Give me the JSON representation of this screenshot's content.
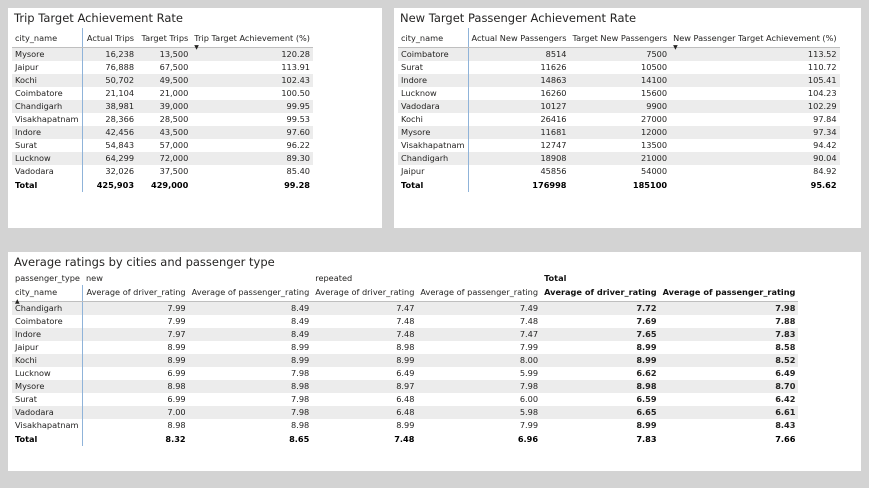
{
  "trip": {
    "title": "Trip Target Achievement Rate",
    "headers": [
      "city_name",
      "Actual Trips",
      "Target Trips",
      "Trip Target Achievement (%)"
    ],
    "rows": [
      [
        "Mysore",
        "16,238",
        "13,500",
        "120.28"
      ],
      [
        "Jaipur",
        "76,888",
        "67,500",
        "113.91"
      ],
      [
        "Kochi",
        "50,702",
        "49,500",
        "102.43"
      ],
      [
        "Coimbatore",
        "21,104",
        "21,000",
        "100.50"
      ],
      [
        "Chandigarh",
        "38,981",
        "39,000",
        "99.95"
      ],
      [
        "Visakhapatnam",
        "28,366",
        "28,500",
        "99.53"
      ],
      [
        "Indore",
        "42,456",
        "43,500",
        "97.60"
      ],
      [
        "Surat",
        "54,843",
        "57,000",
        "96.22"
      ],
      [
        "Lucknow",
        "64,299",
        "72,000",
        "89.30"
      ],
      [
        "Vadodara",
        "32,026",
        "37,500",
        "85.40"
      ]
    ],
    "total": [
      "Total",
      "425,903",
      "429,000",
      "99.28"
    ]
  },
  "passenger": {
    "title": "New Target Passenger Achievement Rate",
    "headers": [
      "city_name",
      "Actual New Passengers",
      "Target New Passengers",
      "New Passenger Target Achievement (%)"
    ],
    "rows": [
      [
        "Coimbatore",
        "8514",
        "7500",
        "113.52"
      ],
      [
        "Surat",
        "11626",
        "10500",
        "110.72"
      ],
      [
        "Indore",
        "14863",
        "14100",
        "105.41"
      ],
      [
        "Lucknow",
        "16260",
        "15600",
        "104.23"
      ],
      [
        "Vadodara",
        "10127",
        "9900",
        "102.29"
      ],
      [
        "Kochi",
        "26416",
        "27000",
        "97.84"
      ],
      [
        "Mysore",
        "11681",
        "12000",
        "97.34"
      ],
      [
        "Visakhapatnam",
        "12747",
        "13500",
        "94.42"
      ],
      [
        "Chandigarh",
        "18908",
        "21000",
        "90.04"
      ],
      [
        "Jaipur",
        "45856",
        "54000",
        "84.92"
      ]
    ],
    "total": [
      "Total",
      "176998",
      "185100",
      "95.62"
    ]
  },
  "ratings": {
    "title": "Average ratings by cities and passenger type",
    "group_label": "passenger_type",
    "groups": [
      "new",
      "repeated",
      "Total"
    ],
    "row_header": "city_name",
    "sub_headers": [
      "Average of driver_rating",
      "Average of passenger_rating"
    ],
    "rows": [
      [
        "Chandigarh",
        "7.99",
        "8.49",
        "7.47",
        "7.49",
        "7.72",
        "7.98"
      ],
      [
        "Coimbatore",
        "7.99",
        "8.49",
        "7.48",
        "7.48",
        "7.69",
        "7.88"
      ],
      [
        "Indore",
        "7.97",
        "8.49",
        "7.48",
        "7.47",
        "7.65",
        "7.83"
      ],
      [
        "Jaipur",
        "8.99",
        "8.99",
        "8.98",
        "7.99",
        "8.99",
        "8.58"
      ],
      [
        "Kochi",
        "8.99",
        "8.99",
        "8.99",
        "8.00",
        "8.99",
        "8.52"
      ],
      [
        "Lucknow",
        "6.99",
        "7.98",
        "6.49",
        "5.99",
        "6.62",
        "6.49"
      ],
      [
        "Mysore",
        "8.98",
        "8.98",
        "8.97",
        "7.98",
        "8.98",
        "8.70"
      ],
      [
        "Surat",
        "6.99",
        "7.98",
        "6.48",
        "6.00",
        "6.59",
        "6.42"
      ],
      [
        "Vadodara",
        "7.00",
        "7.98",
        "6.48",
        "5.98",
        "6.65",
        "6.61"
      ],
      [
        "Visakhapatnam",
        "8.98",
        "8.98",
        "8.99",
        "7.99",
        "8.99",
        "8.43"
      ]
    ],
    "total": [
      "Total",
      "8.32",
      "8.65",
      "7.48",
      "6.96",
      "7.83",
      "7.66"
    ]
  },
  "icons": {
    "sort_desc": "▼",
    "sort_asc": "▲"
  }
}
